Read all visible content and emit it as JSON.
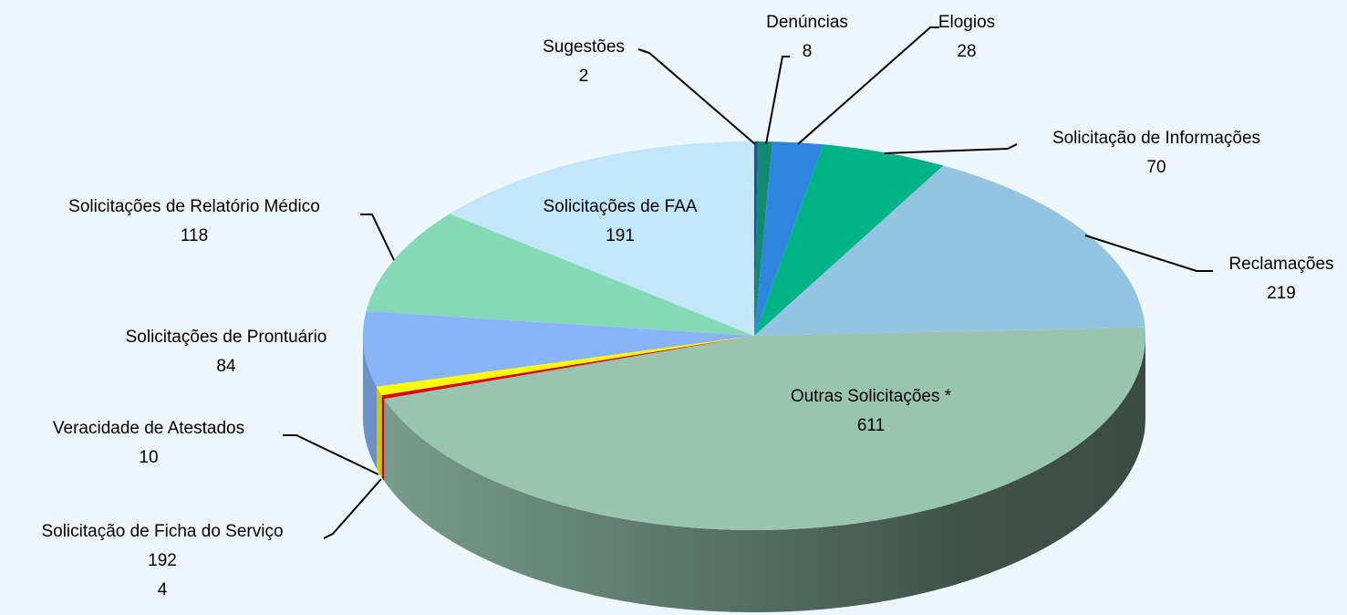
{
  "chart_data": {
    "type": "pie3d",
    "categories": [
      "Sugestões",
      "Denúncias",
      "Elogios",
      "Solicitação de Informações",
      "Reclamações",
      "Outras Solicitações *",
      "Solicitação de Ficha do Serviço\n192",
      "Veracidade de Atestados",
      "Solicitações de Prontuário",
      "Solicitações de Relatório Médico",
      "Solicitações de FAA"
    ],
    "values": [
      2,
      8,
      28,
      70,
      219,
      611,
      4,
      10,
      84,
      118,
      191
    ],
    "colors": [
      "#1f4e9a",
      "#138a72",
      "#2e86de",
      "#00b386",
      "#93c4e0",
      "#98c4b0",
      "#e00000",
      "#ffff00",
      "#8ab4f8",
      "#86d9b6",
      "#c2e6fa"
    ]
  }
}
